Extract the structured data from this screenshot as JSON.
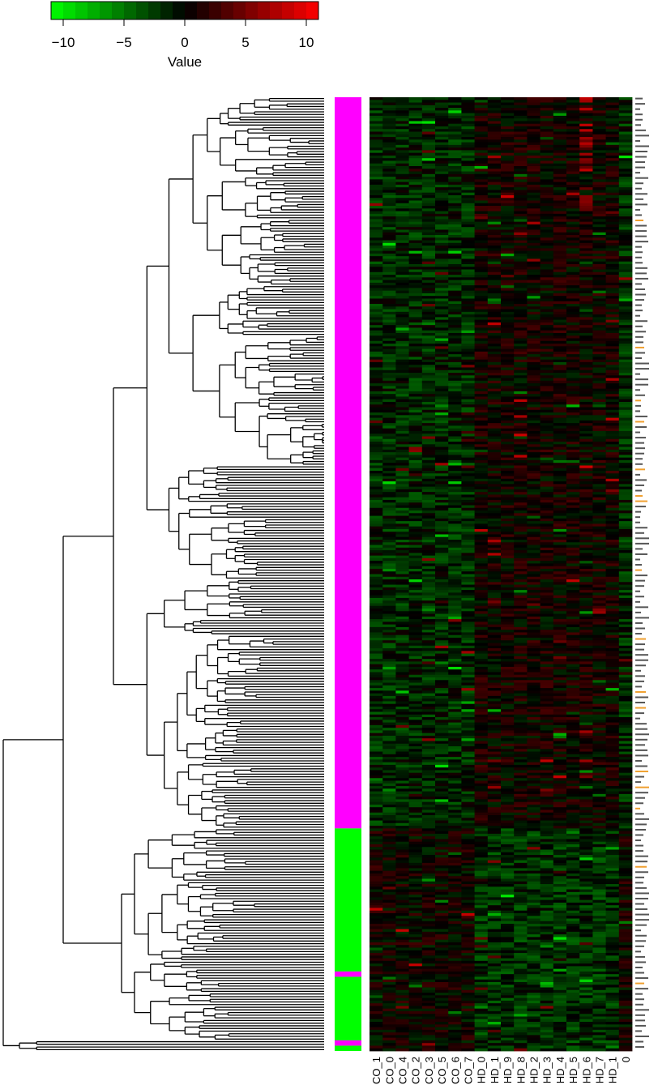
{
  "chart_data": {
    "type": "heatmap",
    "title": "",
    "xlabel": "",
    "ylabel": "",
    "legend": {
      "title": "Value",
      "ticks": [
        -10,
        -5,
        0,
        5,
        10
      ],
      "tick_labels": [
        "−10",
        "−5",
        "0",
        "5",
        "10"
      ],
      "range": [
        -11,
        11
      ],
      "colors": {
        "low": "#00ff00",
        "mid": "#000000",
        "high": "#ff0000"
      },
      "steps": 22
    },
    "columns": [
      "CO_1",
      "CO_0",
      "CO_4",
      "CO_2",
      "CO_3",
      "CO_5",
      "CO_6",
      "CO_7",
      "HD_0",
      "HD_1",
      "HD_9",
      "HD_8",
      "HD_2",
      "HD_3",
      "HD_4",
      "HD_5",
      "HD_6",
      "HD_7",
      "HD_1",
      "0"
    ],
    "row_count": 360,
    "row_groups": [
      {
        "color": "#ff00ff",
        "rows": [
          0,
          276
        ]
      },
      {
        "color": "#00ff00",
        "rows": [
          276,
          330
        ]
      },
      {
        "color": "#ff00ff",
        "rows": [
          330,
          332
        ]
      },
      {
        "color": "#00ff00",
        "rows": [
          332,
          356
        ]
      },
      {
        "color": "#ff00ff",
        "rows": [
          356,
          358
        ]
      },
      {
        "color": "#00ff00",
        "rows": [
          358,
          360
        ]
      }
    ],
    "cluster_split_row": 276,
    "value_range": [
      -10,
      11
    ],
    "grid": false,
    "legend_position": "top-left"
  }
}
